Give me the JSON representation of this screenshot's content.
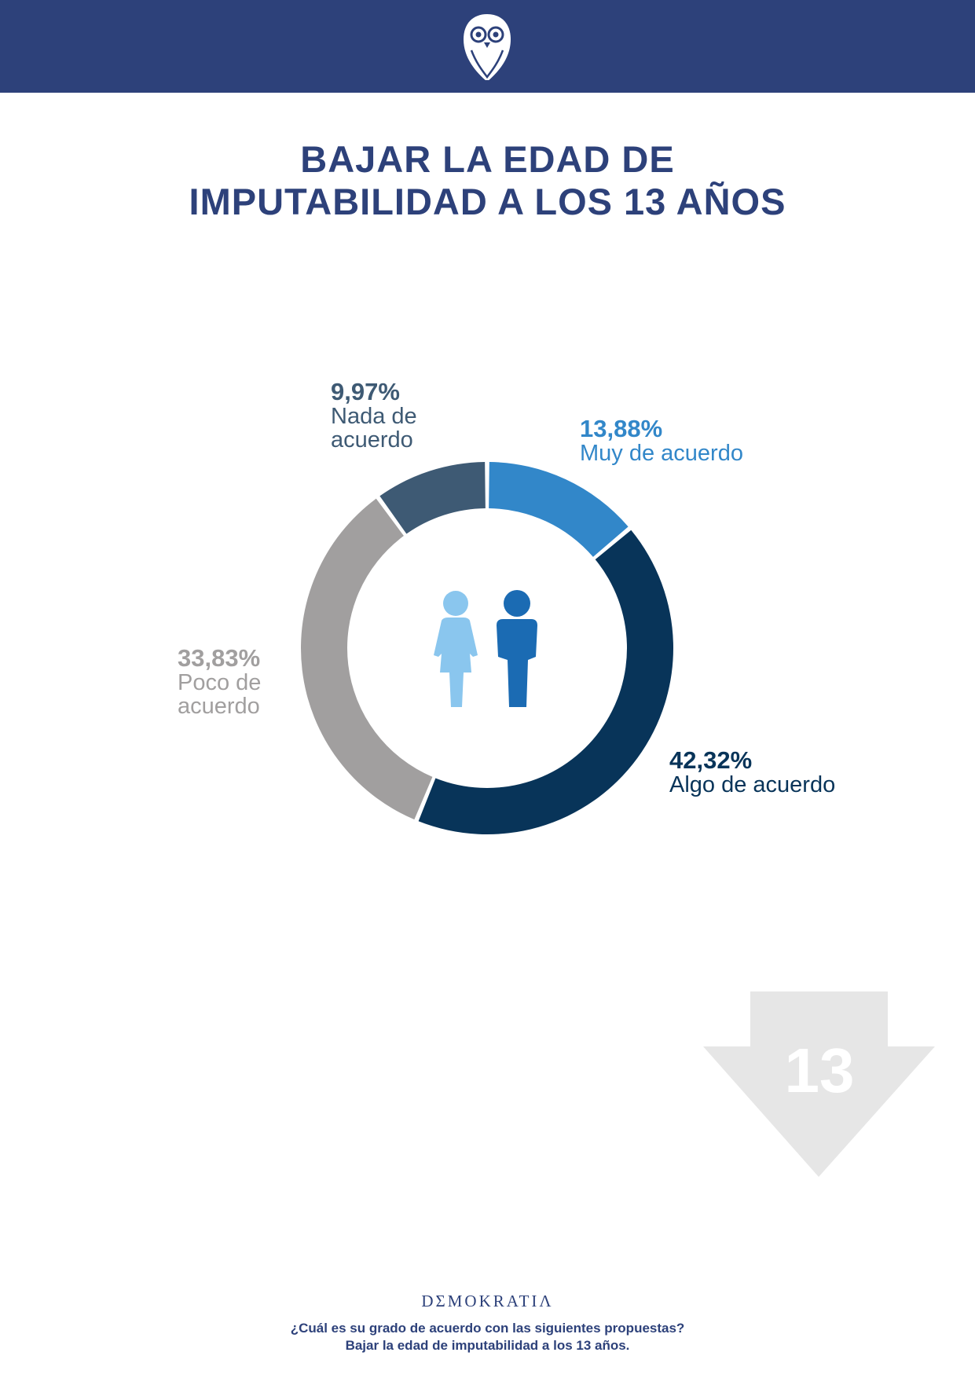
{
  "header": {
    "logo_icon": "owl-icon"
  },
  "title": {
    "line1": "BAJAR LA EDAD DE",
    "line2": "IMPUTABILIDAD A LOS 13 AÑOS"
  },
  "chart_data": {
    "type": "pie",
    "variant": "donut",
    "categories": [
      "Muy de acuerdo",
      "Algo de acuerdo",
      "Poco de acuerdo",
      "Nada de acuerdo"
    ],
    "values": [
      13.88,
      42.32,
      33.83,
      9.97
    ],
    "value_labels": [
      "13,88%",
      "42,32%",
      "33,83%",
      "9,97%"
    ],
    "display_labels": [
      "Muy de acuerdo",
      "Algo de acuerdo",
      "Poco de\nacuerdo",
      "Nada de\nacuerdo"
    ],
    "colors": [
      "#3287c9",
      "#083459",
      "#a19f9f",
      "#3e5a74"
    ],
    "center_icon": "people-icon"
  },
  "decoration": {
    "arrow_icon": "down-arrow-icon",
    "arrow_number": "13"
  },
  "footer": {
    "brand": "DΣMOKRATIΛ",
    "question": "¿Cuál es su grado de acuerdo con las siguientes propuestas?",
    "proposal": "Bajar la edad de imputabilidad a los 13 años."
  }
}
